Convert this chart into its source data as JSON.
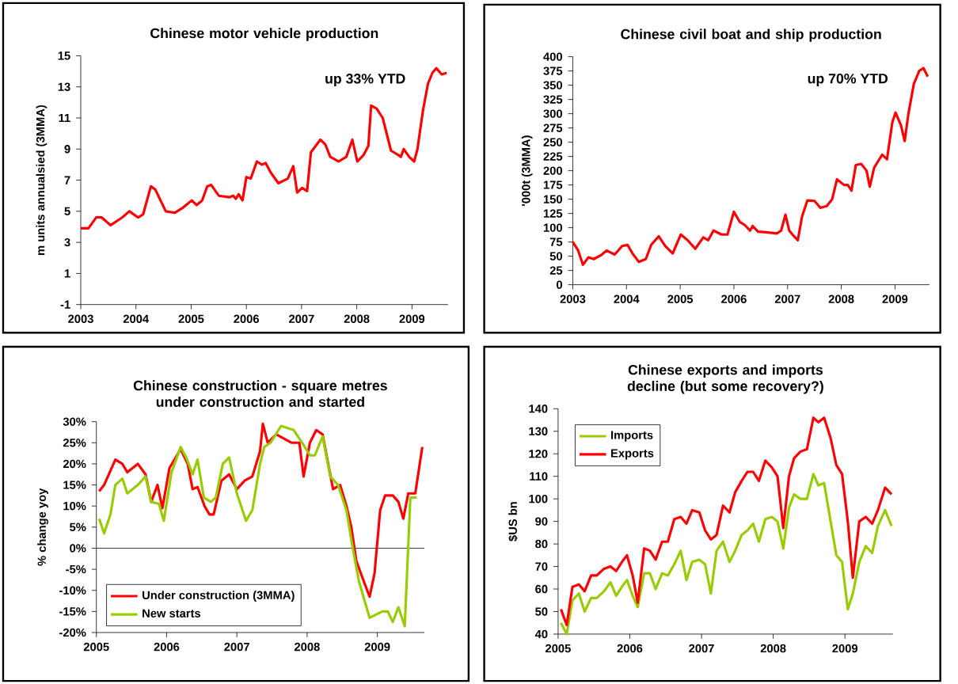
{
  "chart_data": [
    {
      "type": "line",
      "title": "Chinese motor vehicle production",
      "ylabel": "m units annualsied (3MMA)",
      "annotations": [
        "up 33% YTD"
      ],
      "color": "#ff0000",
      "x": [
        2003.0,
        2003.14,
        2003.28,
        2003.38,
        2003.54,
        2003.75,
        2003.88,
        2004.04,
        2004.13,
        2004.27,
        2004.35,
        2004.54,
        2004.7,
        2004.84,
        2005.01,
        2005.1,
        2005.2,
        2005.29,
        2005.36,
        2005.5,
        2005.69,
        2005.76,
        2005.81,
        2005.86,
        2005.93,
        2006.0,
        2006.08,
        2006.19,
        2006.28,
        2006.35,
        2006.44,
        2006.58,
        2006.75,
        2006.85,
        2006.92,
        2007.01,
        2007.1,
        2007.17,
        2007.34,
        2007.43,
        2007.52,
        2007.67,
        2007.81,
        2007.92,
        2008.01,
        2008.12,
        2008.21,
        2008.26,
        2008.36,
        2008.47,
        2008.62,
        2008.76,
        2008.8,
        2008.85,
        2008.95,
        2009.04,
        2009.1,
        2009.2,
        2009.29,
        2009.37,
        2009.44,
        2009.54,
        2009.63
      ],
      "values": [
        3.9,
        3.9,
        4.6,
        4.6,
        4.1,
        4.6,
        5.0,
        4.6,
        4.8,
        6.6,
        6.4,
        5.0,
        4.9,
        5.2,
        5.7,
        5.4,
        5.7,
        6.6,
        6.7,
        6.0,
        5.9,
        6.0,
        5.8,
        6.1,
        5.7,
        7.2,
        7.1,
        8.2,
        8.0,
        8.1,
        7.5,
        6.8,
        7.1,
        7.9,
        6.2,
        6.5,
        6.3,
        8.8,
        9.6,
        9.3,
        8.5,
        8.2,
        8.5,
        9.6,
        8.2,
        8.6,
        9.2,
        11.8,
        11.6,
        11.0,
        8.9,
        8.6,
        8.5,
        9.0,
        8.5,
        8.2,
        9.0,
        11.5,
        13.2,
        13.9,
        14.2,
        13.8,
        13.9
      ],
      "xlim": [
        2003,
        2009.65
      ],
      "xticks": [
        2003,
        2004,
        2005,
        2006,
        2007,
        2008,
        2009
      ],
      "ylim": [
        -1,
        15
      ],
      "yticks": [
        -1,
        1,
        3,
        5,
        7,
        9,
        11,
        13,
        15
      ]
    },
    {
      "type": "line",
      "title": "Chinese civil boat and ship production",
      "ylabel": "'000t  (3MMA)",
      "annotations": [
        "up 70% YTD"
      ],
      "color": "#ff0000",
      "x": [
        2003.0,
        2003.1,
        2003.19,
        2003.29,
        2003.39,
        2003.53,
        2003.63,
        2003.78,
        2003.92,
        2004.02,
        2004.11,
        2004.23,
        2004.36,
        2004.46,
        2004.6,
        2004.72,
        2004.86,
        2005.01,
        2005.14,
        2005.28,
        2005.43,
        2005.52,
        2005.62,
        2005.77,
        2005.88,
        2006.0,
        2006.11,
        2006.2,
        2006.3,
        2006.35,
        2006.45,
        2006.6,
        2006.8,
        2006.88,
        2006.96,
        2007.03,
        2007.12,
        2007.19,
        2007.27,
        2007.37,
        2007.5,
        2007.61,
        2007.73,
        2007.83,
        2007.92,
        2008.05,
        2008.12,
        2008.19,
        2008.27,
        2008.37,
        2008.47,
        2008.53,
        2008.61,
        2008.76,
        2008.85,
        2008.95,
        2009.01,
        2009.11,
        2009.18,
        2009.25,
        2009.35,
        2009.45,
        2009.53,
        2009.61
      ],
      "values": [
        75,
        60,
        35,
        48,
        45,
        52,
        60,
        53,
        68,
        70,
        55,
        40,
        45,
        70,
        85,
        68,
        55,
        88,
        78,
        63,
        83,
        78,
        95,
        88,
        88,
        128,
        110,
        105,
        95,
        103,
        93,
        92,
        90,
        95,
        123,
        95,
        85,
        78,
        120,
        148,
        147,
        135,
        138,
        150,
        185,
        175,
        175,
        165,
        210,
        212,
        200,
        172,
        205,
        228,
        220,
        285,
        302,
        280,
        252,
        300,
        352,
        375,
        380,
        365
      ],
      "xlim": [
        2003,
        2009.64
      ],
      "xticks": [
        2003,
        2004,
        2005,
        2006,
        2007,
        2008,
        2009
      ],
      "ylim": [
        0,
        400
      ],
      "yticks": [
        0,
        25,
        50,
        75,
        100,
        125,
        150,
        175,
        200,
        225,
        250,
        275,
        300,
        325,
        350,
        375,
        400
      ]
    },
    {
      "type": "line",
      "title": "Chinese construction - square metres under construction and started",
      "ylabel": "% change yoy",
      "legend": "bottom left",
      "series": [
        {
          "name": "Under construction (3MMA)",
          "color": "#ff0000",
          "x": [
            2005.04,
            2005.11,
            2005.27,
            2005.37,
            2005.44,
            2005.59,
            2005.7,
            2005.78,
            2005.87,
            2005.94,
            2006.04,
            2006.2,
            2006.3,
            2006.37,
            2006.44,
            2006.54,
            2006.61,
            2006.67,
            2006.78,
            2006.89,
            2007.0,
            2007.11,
            2007.22,
            2007.33,
            2007.37,
            2007.44,
            2007.56,
            2007.78,
            2007.89,
            2007.95,
            2008.04,
            2008.13,
            2008.22,
            2008.3,
            2008.37,
            2008.47,
            2008.56,
            2008.63,
            2008.7,
            2008.81,
            2008.89,
            2008.96,
            2009.04,
            2009.11,
            2009.22,
            2009.3,
            2009.37,
            2009.44,
            2009.54,
            2009.64
          ],
          "values": [
            13.5,
            15,
            21,
            20,
            18,
            20,
            17.5,
            11,
            15,
            9.5,
            19,
            23.5,
            20,
            14,
            14.5,
            10,
            8,
            8,
            16,
            17.5,
            14,
            16,
            17,
            23,
            29.5,
            25,
            27,
            25,
            25,
            17,
            25,
            28,
            27,
            20,
            14,
            15,
            10,
            5,
            -3,
            -8,
            -11.5,
            -6,
            9,
            12.5,
            12.5,
            11,
            7,
            13,
            13,
            24
          ]
        },
        {
          "name": "New starts",
          "color": "#99cc00",
          "x": [
            2005.04,
            2005.11,
            2005.2,
            2005.27,
            2005.37,
            2005.44,
            2005.59,
            2005.7,
            2005.78,
            2005.89,
            2005.96,
            2006.07,
            2006.2,
            2006.28,
            2006.37,
            2006.44,
            2006.53,
            2006.63,
            2006.7,
            2006.8,
            2006.89,
            2007.0,
            2007.13,
            2007.22,
            2007.33,
            2007.39,
            2007.48,
            2007.63,
            2007.81,
            2007.93,
            2008.04,
            2008.11,
            2008.22,
            2008.33,
            2008.44,
            2008.56,
            2008.65,
            2008.74,
            2008.89,
            2009.07,
            2009.15,
            2009.22,
            2009.3,
            2009.39,
            2009.47,
            2009.56
          ],
          "values": [
            7,
            3.5,
            8,
            15,
            16.5,
            13,
            15,
            17,
            11,
            10.5,
            6.5,
            18,
            24,
            21.5,
            17.5,
            21,
            12,
            11,
            12,
            20,
            21.5,
            13,
            6.5,
            9,
            20,
            24,
            25,
            29,
            28,
            25,
            22,
            22,
            26.5,
            17,
            15,
            9,
            0,
            -8,
            -16.5,
            -15,
            -15,
            -17.5,
            -14,
            -18.5,
            12,
            12
          ]
        }
      ],
      "xlim": [
        2005,
        2009.67
      ],
      "xticks": [
        2005,
        2006,
        2007,
        2008,
        2009
      ],
      "ylim": [
        -20,
        30
      ],
      "yticks": [
        {
          "value": -20,
          "label": "-20%"
        },
        {
          "value": -15,
          "label": "-15%"
        },
        {
          "value": -10,
          "label": "-10%"
        },
        {
          "value": -5,
          "label": "-5%"
        },
        {
          "value": 0,
          "label": "0%"
        },
        {
          "value": 5,
          "label": "5%"
        },
        {
          "value": 10,
          "label": "10%"
        },
        {
          "value": 15,
          "label": "15%"
        },
        {
          "value": 20,
          "label": "20%"
        },
        {
          "value": 25,
          "label": "25%"
        },
        {
          "value": 30,
          "label": "30%"
        }
      ],
      "ref_lines": [
        {
          "axis": "y",
          "value": 0,
          "color": "#000000"
        }
      ]
    },
    {
      "type": "line",
      "title": "Chinese exports and imports decline (but some recovery?)",
      "ylabel": "$US bn",
      "legend": "top left",
      "x": [
        2005.04,
        2005.12,
        2005.2,
        2005.29,
        2005.37,
        2005.46,
        2005.54,
        2005.64,
        2005.73,
        2005.81,
        2005.89,
        2005.96,
        2006.04,
        2006.11,
        2006.2,
        2006.28,
        2006.36,
        2006.45,
        2006.53,
        2006.62,
        2006.71,
        2006.79,
        2006.87,
        2006.97,
        2007.05,
        2007.13,
        2007.21,
        2007.3,
        2007.39,
        2007.47,
        2007.56,
        2007.64,
        2007.72,
        2007.8,
        2007.89,
        2007.98,
        2008.06,
        2008.14,
        2008.22,
        2008.29,
        2008.38,
        2008.47,
        2008.56,
        2008.63,
        2008.71,
        2008.8,
        2008.88,
        2008.96,
        2009.04,
        2009.11,
        2009.2,
        2009.29,
        2009.38,
        2009.46,
        2009.56,
        2009.65
      ],
      "series": [
        {
          "name": "Imports",
          "color": "#99cc00",
          "values": [
            45,
            40,
            55,
            58,
            50,
            56,
            56,
            59,
            63,
            57,
            61,
            64,
            57,
            52,
            67,
            67,
            60,
            67,
            66,
            71,
            77,
            64,
            72,
            73,
            71,
            58,
            77,
            81,
            72,
            77,
            84,
            86,
            89,
            81,
            91,
            92,
            90,
            78,
            96,
            102,
            100,
            100,
            111,
            106,
            107,
            90,
            75,
            72,
            51,
            58,
            72,
            79,
            76,
            88,
            95,
            88
          ]
        },
        {
          "name": "Exports",
          "color": "#ff0000",
          "values": [
            51,
            44,
            61,
            62,
            59,
            66,
            66,
            69,
            70,
            68,
            72,
            75,
            66,
            54,
            78,
            77,
            73,
            81,
            81,
            91,
            92,
            89,
            95,
            94,
            86,
            82,
            84,
            97,
            94,
            103,
            108,
            112,
            112,
            108,
            117,
            114,
            110,
            87,
            110,
            118,
            121,
            122,
            136,
            134,
            136,
            127,
            115,
            111,
            90,
            65,
            90,
            92,
            89,
            95,
            105,
            102
          ]
        }
      ],
      "xlim": [
        2005,
        2009.67
      ],
      "xticks": [
        2005,
        2006,
        2007,
        2008,
        2009
      ],
      "ylim": [
        40,
        140
      ],
      "yticks": [
        40,
        50,
        60,
        70,
        80,
        90,
        100,
        110,
        120,
        130,
        140
      ]
    }
  ]
}
